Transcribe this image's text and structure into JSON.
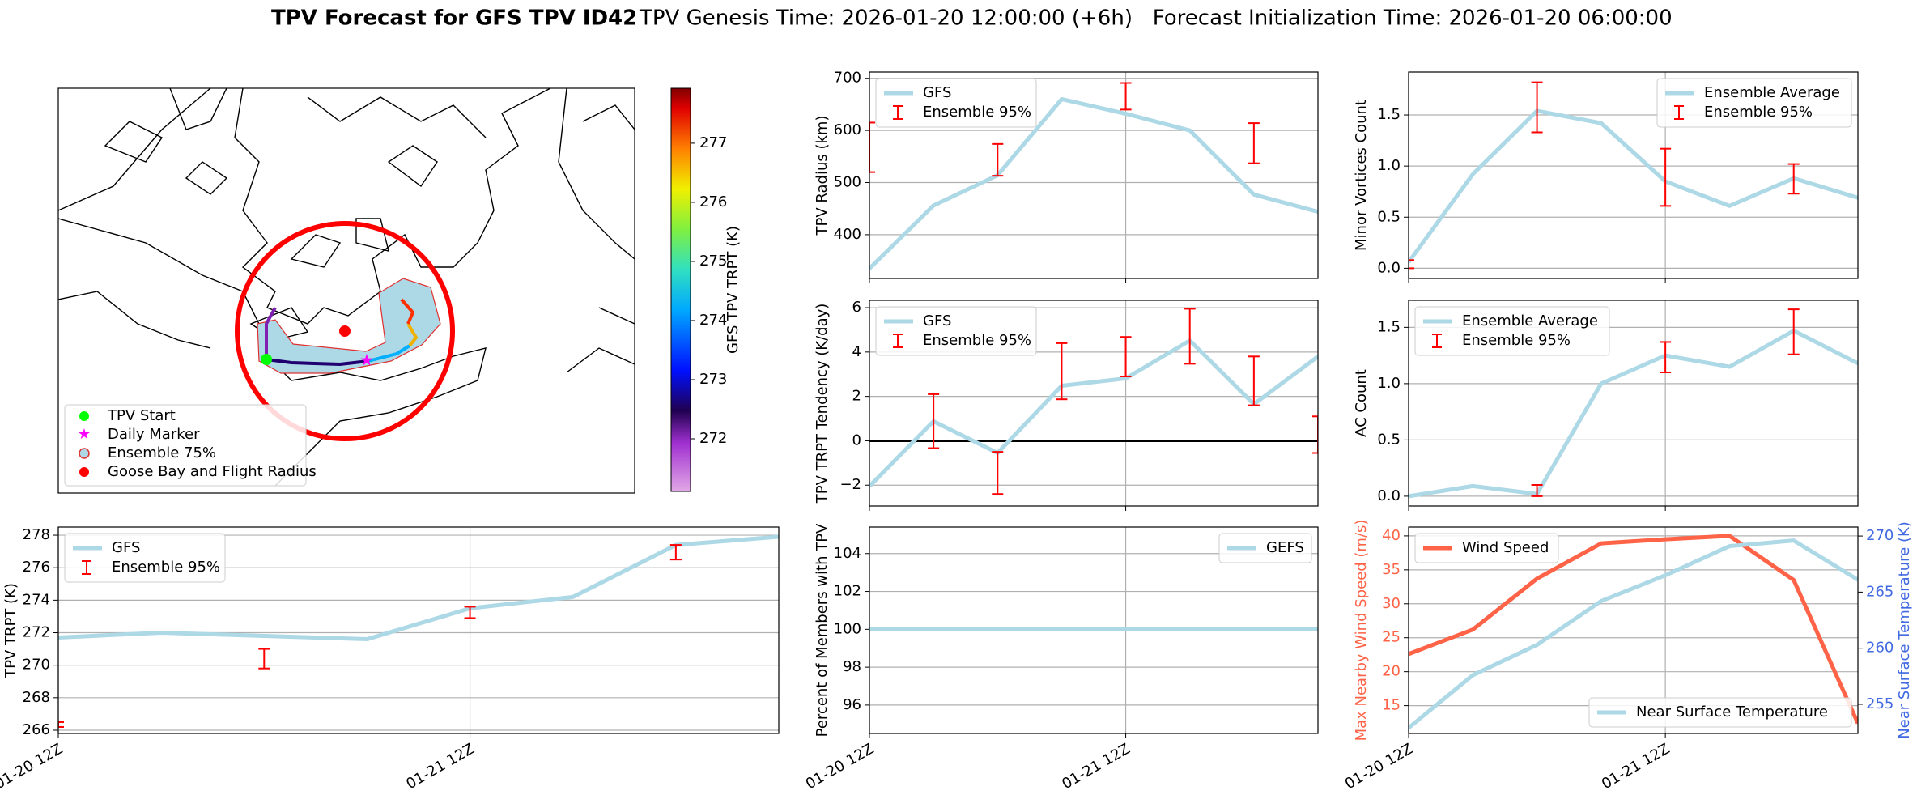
{
  "title": {
    "main": "TPV Forecast for GFS TPV ID42",
    "detail": "TPV Genesis Time: 2026-01-20 12:00:00 (+6h)   Forecast Initialization Time: 2026-01-20 06:00:00"
  },
  "map": {
    "legend": [
      "TPV Start",
      "Daily Marker",
      "Ensemble 75%",
      "Goose Bay and Flight Radius"
    ],
    "colorbar": {
      "label": "GFS TPV TRPT (K)",
      "ylim": [
        271.11,
        277.93
      ],
      "yticks": [
        272,
        273,
        274,
        275,
        276,
        277
      ]
    }
  },
  "chart_data": [
    {
      "type": "line",
      "ylabel": "TPV TRPT (K)",
      "x": [
        "01-20 12Z",
        "01-20 18Z",
        "01-21 00Z",
        "01-21 06Z",
        "01-21 12Z",
        "01-21 18Z",
        "01-22 00Z",
        "01-22 06Z"
      ],
      "xlim": [
        "01-20 12Z",
        "01-22 06Z"
      ],
      "xticks": [
        "01-20 12Z",
        "01-21 12Z"
      ],
      "show_xticklabels": true,
      "ylim": [
        265.8,
        278.5
      ],
      "yticks": [
        266,
        268,
        270,
        272,
        274,
        276,
        278
      ],
      "grid": true,
      "legend": "upper left",
      "series": [
        {
          "name": "GFS",
          "color": "#add8e6",
          "values": [
            271.7,
            272.0,
            271.8,
            271.6,
            273.5,
            274.2,
            277.4,
            277.9
          ]
        },
        {
          "name": "Ensemble 95%",
          "type": "errorbar",
          "color": "#ff0000",
          "low": [
            266.2,
            null,
            269.8,
            null,
            272.9,
            null,
            276.5,
            null
          ],
          "high": [
            266.5,
            null,
            271.0,
            null,
            273.6,
            null,
            277.4,
            null
          ]
        }
      ]
    },
    {
      "type": "line",
      "ylabel": "TPV Radius (km)",
      "x": [
        "01-20 12Z",
        "01-20 18Z",
        "01-21 00Z",
        "01-21 06Z",
        "01-21 12Z",
        "01-21 18Z",
        "01-22 00Z",
        "01-22 06Z"
      ],
      "xlim": [
        "01-20 12Z",
        "01-22 06Z"
      ],
      "xticks": [
        "01-20 12Z",
        "01-21 12Z"
      ],
      "show_xticklabels": false,
      "ylim": [
        316,
        712
      ],
      "yticks": [
        400,
        500,
        600,
        700
      ],
      "grid": true,
      "legend": "upper left",
      "series": [
        {
          "name": "GFS",
          "color": "#add8e6",
          "values": [
            335,
            456,
            514,
            660,
            632,
            600,
            477,
            444
          ]
        },
        {
          "name": "Ensemble 95%",
          "type": "errorbar",
          "color": "#ff0000",
          "low": [
            520,
            null,
            513,
            null,
            640,
            null,
            537,
            null
          ],
          "high": [
            615,
            null,
            574,
            null,
            691,
            null,
            614,
            null
          ]
        }
      ]
    },
    {
      "type": "line",
      "ylabel": "TPV TRPT Tendency (K/day)",
      "x": [
        "01-20 12Z",
        "01-20 18Z",
        "01-21 00Z",
        "01-21 06Z",
        "01-21 12Z",
        "01-21 18Z",
        "01-22 00Z",
        "01-22 06Z"
      ],
      "xlim": [
        "01-20 12Z",
        "01-22 06Z"
      ],
      "xticks": [
        "01-20 12Z",
        "01-21 12Z"
      ],
      "show_xticklabels": false,
      "ylim": [
        -2.94,
        6.33
      ],
      "yticks": [
        {
          "value": -2,
          "label": "−2"
        },
        0,
        2,
        4,
        6
      ],
      "grid": true,
      "legend": "upper left",
      "hline": 0,
      "series": [
        {
          "name": "GFS",
          "color": "#add8e6",
          "values": [
            -2.05,
            0.88,
            -0.55,
            2.48,
            2.81,
            4.52,
            1.65,
            3.8
          ]
        },
        {
          "name": "Ensemble 95%",
          "type": "errorbar",
          "color": "#ff0000",
          "low": [
            null,
            -0.33,
            -2.4,
            1.87,
            2.9,
            3.47,
            1.6,
            -0.55
          ],
          "high": [
            null,
            2.1,
            -0.5,
            4.4,
            4.68,
            5.95,
            3.8,
            1.1
          ]
        }
      ]
    },
    {
      "type": "line",
      "ylabel": "Percent of Members with TPV",
      "x": [
        "01-20 12Z",
        "01-20 18Z",
        "01-21 00Z",
        "01-21 06Z",
        "01-21 12Z",
        "01-21 18Z",
        "01-22 00Z",
        "01-22 06Z"
      ],
      "xlim": [
        "01-20 12Z",
        "01-22 06Z"
      ],
      "xticks": [
        "01-20 12Z",
        "01-21 12Z"
      ],
      "show_xticklabels": true,
      "ylim": [
        94.5,
        105.4
      ],
      "yticks": [
        96,
        98,
        100,
        102,
        104
      ],
      "grid": true,
      "legend": "upper right",
      "series": [
        {
          "name": "GEFS",
          "color": "#add8e6",
          "values": [
            100,
            100,
            100,
            100,
            100,
            100,
            100,
            100
          ]
        }
      ]
    },
    {
      "type": "line",
      "ylabel": "Minor Vortices Count",
      "x": [
        "01-20 12Z",
        "01-20 18Z",
        "01-21 00Z",
        "01-21 06Z",
        "01-21 12Z",
        "01-21 18Z",
        "01-22 00Z",
        "01-22 06Z"
      ],
      "xlim": [
        "01-20 12Z",
        "01-22 06Z"
      ],
      "xticks": [
        "01-20 12Z",
        "01-21 12Z"
      ],
      "show_xticklabels": false,
      "ylim": [
        -0.1,
        1.92
      ],
      "yticks": [
        {
          "value": 0,
          "label": "0.0"
        },
        0.5,
        {
          "value": 1,
          "label": "1.0"
        },
        1.5
      ],
      "grid": true,
      "legend": "upper right",
      "series": [
        {
          "name": "Ensemble Average",
          "color": "#add8e6",
          "values": [
            0.06,
            0.92,
            1.54,
            1.42,
            0.85,
            0.61,
            0.88,
            0.69
          ]
        },
        {
          "name": "Ensemble 95%",
          "type": "errorbar",
          "color": "#ff0000",
          "low": [
            0,
            null,
            1.33,
            null,
            0.61,
            null,
            0.73,
            null
          ],
          "high": [
            0.08,
            null,
            1.82,
            null,
            1.17,
            null,
            1.02,
            null
          ]
        }
      ]
    },
    {
      "type": "line",
      "ylabel": "AC Count",
      "x": [
        "01-20 12Z",
        "01-20 18Z",
        "01-21 00Z",
        "01-21 06Z",
        "01-21 12Z",
        "01-21 18Z",
        "01-22 00Z",
        "01-22 06Z"
      ],
      "xlim": [
        "01-20 12Z",
        "01-22 06Z"
      ],
      "xticks": [
        "01-20 12Z",
        "01-21 12Z"
      ],
      "show_xticklabels": false,
      "ylim": [
        -0.087,
        1.74
      ],
      "yticks": [
        {
          "value": 0,
          "label": "0.0"
        },
        0.5,
        {
          "value": 1,
          "label": "1.0"
        },
        1.5
      ],
      "grid": true,
      "legend": "upper left",
      "series": [
        {
          "name": "Ensemble Average",
          "color": "#add8e6",
          "values": [
            0,
            0.09,
            0.02,
            1.0,
            1.25,
            1.15,
            1.47,
            1.18
          ]
        },
        {
          "name": "Ensemble 95%",
          "type": "errorbar",
          "color": "#ff0000",
          "low": [
            null,
            null,
            0,
            null,
            1.1,
            null,
            1.26,
            null
          ],
          "high": [
            null,
            null,
            0.1,
            null,
            1.37,
            null,
            1.66,
            null
          ]
        }
      ]
    },
    {
      "type": "line",
      "ylabel": "Max Nearby Wind Speed (m/s)",
      "ylabel_color": "#ff6347",
      "y2label": "Near Surface Temperature (K)",
      "y2label_color": "#4169e1",
      "x": [
        "01-20 12Z",
        "01-20 18Z",
        "01-21 00Z",
        "01-21 06Z",
        "01-21 12Z",
        "01-21 18Z",
        "01-22 00Z",
        "01-22 06Z"
      ],
      "xlim": [
        "01-20 12Z",
        "01-22 06Z"
      ],
      "xticks": [
        "01-20 12Z",
        "01-21 12Z"
      ],
      "show_xticklabels": true,
      "ylim": [
        10.9,
        41.3
      ],
      "yticks": [
        15,
        20,
        25,
        30,
        35,
        40
      ],
      "y2lim": [
        252.4,
        270.8
      ],
      "y2ticks": [
        255,
        260,
        265,
        270
      ],
      "grid": true,
      "legend": "upper left",
      "series": [
        {
          "name": "Wind Speed",
          "color": "#ff6347",
          "values": [
            22.6,
            26.2,
            33.7,
            38.9,
            39.5,
            40.0,
            33.5,
            12.4
          ]
        },
        {
          "name": "Near Surface Temperature",
          "color": "#add8e6",
          "axis": "y2",
          "legend": "lower right",
          "values": [
            252.9,
            257.6,
            260.3,
            264.2,
            266.5,
            269.1,
            269.6,
            266.1
          ]
        }
      ]
    }
  ]
}
